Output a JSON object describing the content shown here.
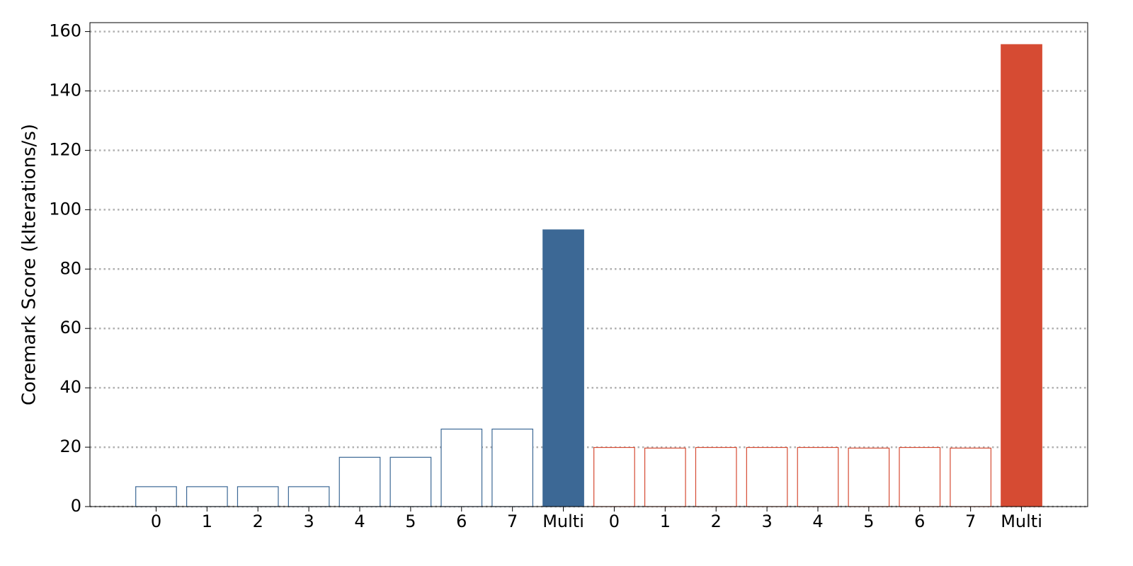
{
  "chart_data": {
    "type": "bar",
    "y_label": "Coremark Score (kIterations/s)",
    "categories": [
      "0",
      "1",
      "2",
      "3",
      "4",
      "5",
      "6",
      "7",
      "Multi",
      "0",
      "1",
      "2",
      "3",
      "4",
      "5",
      "6",
      "7",
      "Multi"
    ],
    "series": [
      {
        "color": "#3c6895",
        "values": [
          6.7,
          6.7,
          6.7,
          6.7,
          16.6,
          16.6,
          26.1,
          26.1,
          93.2,
          null,
          null,
          null,
          null,
          null,
          null,
          null,
          null,
          null
        ],
        "filled": [
          false,
          false,
          false,
          false,
          false,
          false,
          false,
          false,
          true,
          false,
          false,
          false,
          false,
          false,
          false,
          false,
          false,
          false
        ]
      },
      {
        "color": "#d64b33",
        "values": [
          null,
          null,
          null,
          null,
          null,
          null,
          null,
          null,
          null,
          19.9,
          19.7,
          19.9,
          19.9,
          19.9,
          19.7,
          19.9,
          19.7,
          155.6
        ],
        "filled": [
          false,
          false,
          false,
          false,
          false,
          false,
          false,
          false,
          false,
          false,
          false,
          false,
          false,
          false,
          false,
          false,
          false,
          true
        ]
      }
    ],
    "ylim": [
      0,
      163
    ],
    "yticks": [
      0,
      20,
      40,
      60,
      80,
      100,
      120,
      140,
      160
    ],
    "grid": true
  }
}
